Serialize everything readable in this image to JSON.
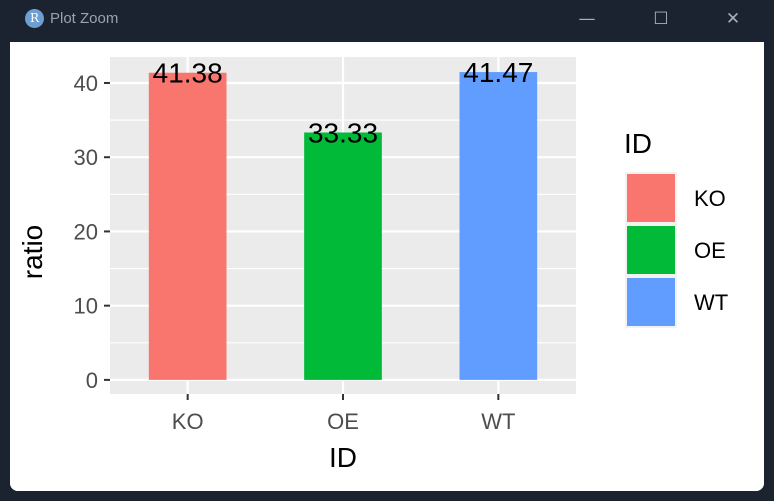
{
  "window": {
    "title": "Plot Zoom",
    "app_icon": "R",
    "controls": {
      "minimize": "—",
      "maximize": "☐",
      "close": "✕"
    }
  },
  "chart_data": {
    "type": "bar",
    "categories": [
      "KO",
      "OE",
      "WT"
    ],
    "values": [
      41.38,
      33.33,
      41.47
    ],
    "data_labels": [
      "41.38",
      "33.33",
      "41.47"
    ],
    "colors": [
      "#F8766D",
      "#00BA38",
      "#619CFF"
    ],
    "xlabel": "ID",
    "ylabel": "ratio",
    "ylim": [
      -1.9,
      43.5
    ],
    "yticks": [
      0,
      10,
      20,
      30,
      40
    ],
    "grid": true,
    "panel_background": "#EBEBEB",
    "legend": {
      "title": "ID",
      "entries": [
        "KO",
        "OE",
        "WT"
      ],
      "position": "right"
    }
  }
}
